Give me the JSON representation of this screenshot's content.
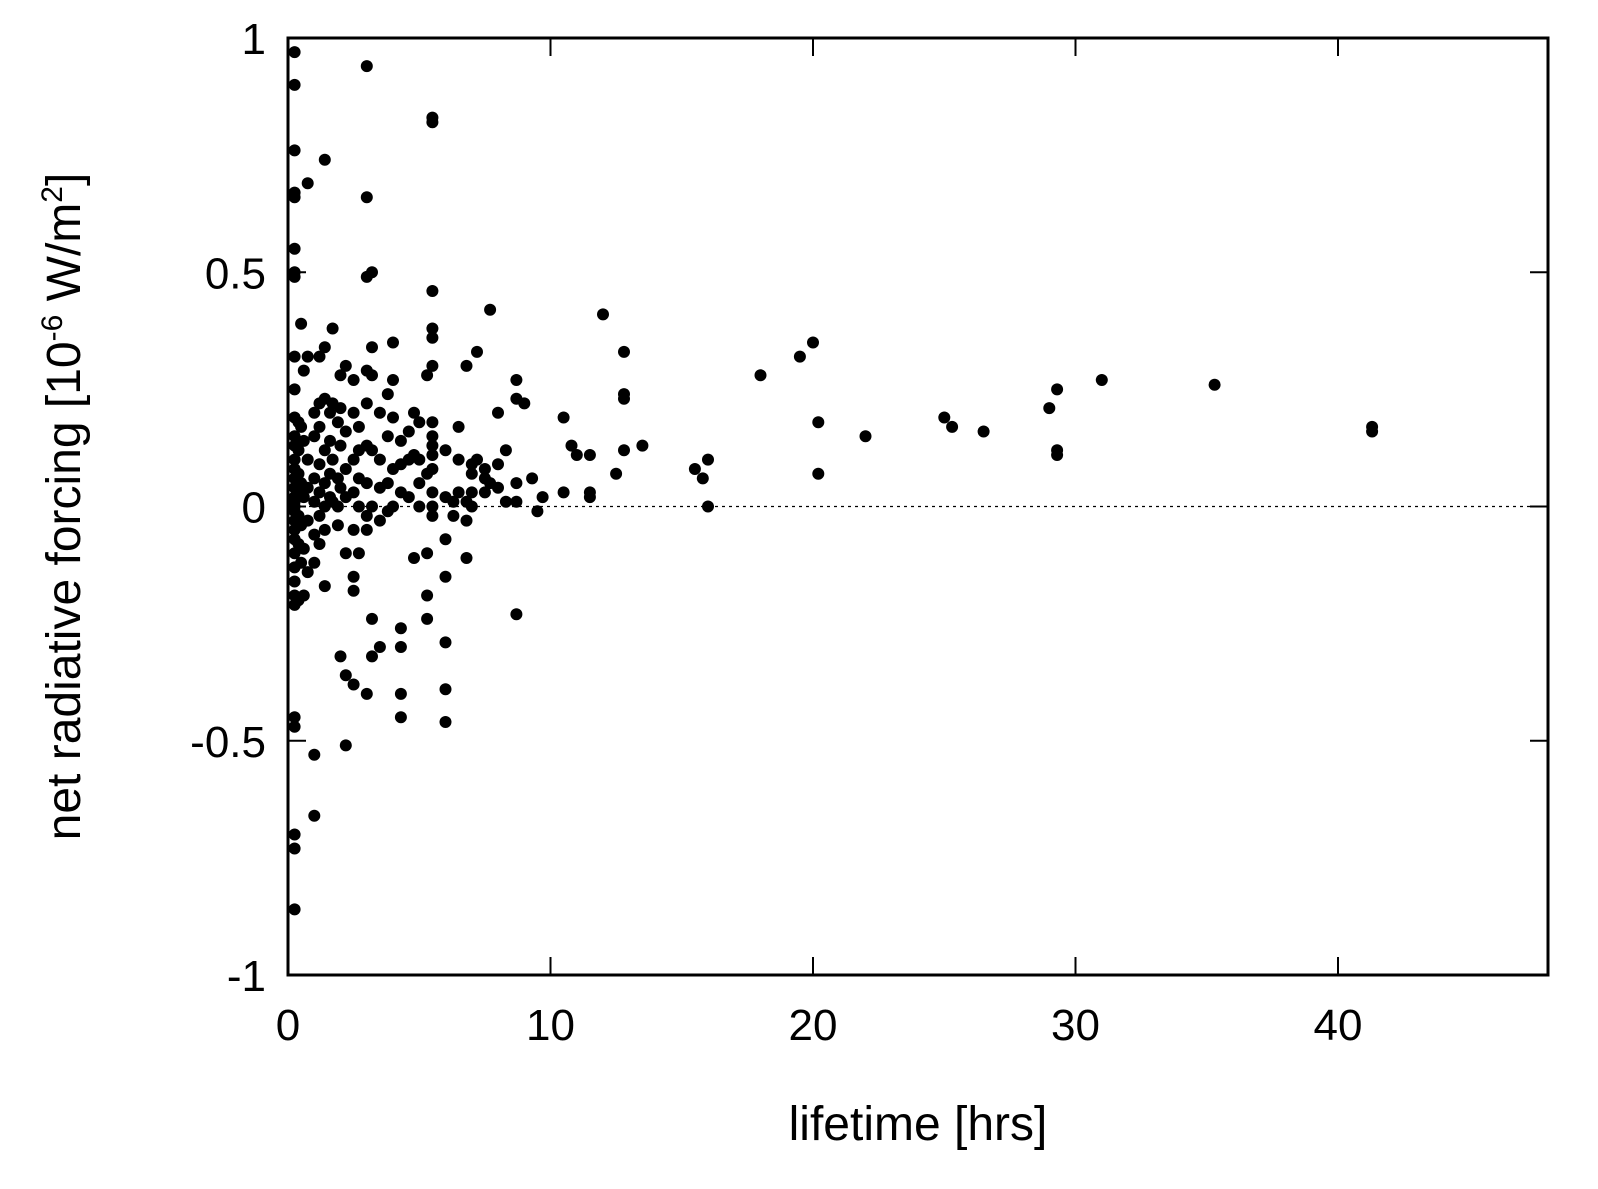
{
  "chart_data": {
    "type": "scatter",
    "title": "",
    "xlabel": "lifetime [hrs]",
    "ylabel_parts": {
      "pre": "net radiative forcing [10",
      "exp": "-6",
      "mid": " W/m",
      "exp2": "2",
      "post": "]"
    },
    "xlim": [
      0,
      48
    ],
    "ylim": [
      -1,
      1
    ],
    "x_ticks": [
      0,
      10,
      20,
      30,
      40
    ],
    "y_ticks": [
      -1,
      -0.5,
      0,
      0.5,
      1
    ],
    "x_tick_labels": [
      "0",
      "10",
      "20",
      "30",
      "40"
    ],
    "y_tick_labels": [
      "-1",
      "-0.5",
      "0",
      "0.5",
      "1"
    ],
    "zero_line": true,
    "grid": false,
    "series": [
      {
        "points": [
          [
            0.25,
            0.97
          ],
          [
            0.25,
            0.9
          ],
          [
            0.25,
            0.76
          ],
          [
            0.25,
            0.67
          ],
          [
            0.25,
            0.66
          ],
          [
            0.25,
            0.55
          ],
          [
            0.25,
            0.5
          ],
          [
            0.25,
            0.49
          ],
          [
            0.25,
            0.32
          ],
          [
            0.25,
            0.25
          ],
          [
            0.25,
            0.19
          ],
          [
            0.25,
            0.15
          ],
          [
            0.25,
            0.13
          ],
          [
            0.25,
            0.1
          ],
          [
            0.25,
            0.08
          ],
          [
            0.25,
            0.06
          ],
          [
            0.25,
            0.04
          ],
          [
            0.25,
            0.02
          ],
          [
            0.25,
            0.01
          ],
          [
            0.25,
            0.0
          ],
          [
            0.25,
            -0.01
          ],
          [
            0.25,
            -0.03
          ],
          [
            0.25,
            -0.05
          ],
          [
            0.25,
            -0.07
          ],
          [
            0.25,
            -0.1
          ],
          [
            0.25,
            -0.13
          ],
          [
            0.25,
            -0.16
          ],
          [
            0.25,
            -0.19
          ],
          [
            0.25,
            -0.21
          ],
          [
            0.25,
            -0.45
          ],
          [
            0.25,
            -0.47
          ],
          [
            0.25,
            -0.7
          ],
          [
            0.25,
            -0.73
          ],
          [
            0.25,
            -0.86
          ],
          [
            0.4,
            0.18
          ],
          [
            0.4,
            0.12
          ],
          [
            0.4,
            0.07
          ],
          [
            0.4,
            0.03
          ],
          [
            0.4,
            -0.02
          ],
          [
            0.4,
            -0.08
          ],
          [
            0.4,
            -0.2
          ],
          [
            0.5,
            0.39
          ],
          [
            0.5,
            0.17
          ],
          [
            0.5,
            0.05
          ],
          [
            0.5,
            -0.04
          ],
          [
            0.5,
            -0.12
          ],
          [
            0.6,
            0.29
          ],
          [
            0.6,
            0.14
          ],
          [
            0.6,
            0.02
          ],
          [
            0.6,
            -0.09
          ],
          [
            0.6,
            -0.19
          ],
          [
            0.75,
            0.69
          ],
          [
            0.75,
            0.32
          ],
          [
            0.75,
            0.1
          ],
          [
            0.75,
            0.04
          ],
          [
            0.75,
            -0.03
          ],
          [
            0.75,
            -0.14
          ],
          [
            1.0,
            0.2
          ],
          [
            1.0,
            0.15
          ],
          [
            1.0,
            0.06
          ],
          [
            1.0,
            0.01
          ],
          [
            1.0,
            -0.06
          ],
          [
            1.0,
            -0.12
          ],
          [
            1.0,
            -0.53
          ],
          [
            1.0,
            -0.66
          ],
          [
            1.2,
            0.32
          ],
          [
            1.2,
            0.22
          ],
          [
            1.2,
            0.17
          ],
          [
            1.2,
            0.09
          ],
          [
            1.2,
            0.03
          ],
          [
            1.2,
            -0.02
          ],
          [
            1.2,
            -0.08
          ],
          [
            1.4,
            0.74
          ],
          [
            1.4,
            0.34
          ],
          [
            1.4,
            0.23
          ],
          [
            1.4,
            0.12
          ],
          [
            1.4,
            0.05
          ],
          [
            1.4,
            0.0
          ],
          [
            1.4,
            -0.05
          ],
          [
            1.4,
            -0.17
          ],
          [
            1.6,
            0.2
          ],
          [
            1.6,
            0.14
          ],
          [
            1.6,
            0.07
          ],
          [
            1.6,
            0.02
          ],
          [
            1.7,
            0.38
          ],
          [
            1.7,
            0.22
          ],
          [
            1.7,
            0.1
          ],
          [
            1.7,
            0.01
          ],
          [
            1.9,
            0.18
          ],
          [
            1.9,
            0.06
          ],
          [
            1.9,
            0.0
          ],
          [
            1.9,
            -0.04
          ],
          [
            2.0,
            0.28
          ],
          [
            2.0,
            0.21
          ],
          [
            2.0,
            0.13
          ],
          [
            2.0,
            0.04
          ],
          [
            2.0,
            -0.32
          ],
          [
            2.2,
            0.3
          ],
          [
            2.2,
            0.16
          ],
          [
            2.2,
            0.08
          ],
          [
            2.2,
            0.02
          ],
          [
            2.2,
            -0.1
          ],
          [
            2.2,
            -0.36
          ],
          [
            2.2,
            -0.51
          ],
          [
            2.5,
            0.27
          ],
          [
            2.5,
            0.2
          ],
          [
            2.5,
            0.1
          ],
          [
            2.5,
            0.03
          ],
          [
            2.5,
            -0.05
          ],
          [
            2.5,
            -0.15
          ],
          [
            2.5,
            -0.18
          ],
          [
            2.5,
            -0.38
          ],
          [
            2.7,
            0.17
          ],
          [
            2.7,
            0.12
          ],
          [
            2.7,
            0.06
          ],
          [
            2.7,
            0.0
          ],
          [
            2.7,
            -0.1
          ],
          [
            3.0,
            0.94
          ],
          [
            3.0,
            0.66
          ],
          [
            3.0,
            0.49
          ],
          [
            3.0,
            0.29
          ],
          [
            3.0,
            0.22
          ],
          [
            3.0,
            0.13
          ],
          [
            3.0,
            0.05
          ],
          [
            3.0,
            -0.02
          ],
          [
            3.0,
            -0.05
          ],
          [
            3.0,
            -0.4
          ],
          [
            3.2,
            0.5
          ],
          [
            3.2,
            0.34
          ],
          [
            3.2,
            0.28
          ],
          [
            3.2,
            0.12
          ],
          [
            3.2,
            0.0
          ],
          [
            3.2,
            -0.24
          ],
          [
            3.2,
            -0.32
          ],
          [
            3.5,
            0.2
          ],
          [
            3.5,
            0.1
          ],
          [
            3.5,
            0.04
          ],
          [
            3.5,
            -0.03
          ],
          [
            3.5,
            -0.3
          ],
          [
            3.8,
            0.24
          ],
          [
            3.8,
            0.15
          ],
          [
            3.8,
            0.05
          ],
          [
            3.8,
            -0.01
          ],
          [
            4.0,
            0.35
          ],
          [
            4.0,
            0.27
          ],
          [
            4.0,
            0.19
          ],
          [
            4.0,
            0.08
          ],
          [
            4.0,
            0.0
          ],
          [
            4.3,
            0.14
          ],
          [
            4.3,
            0.09
          ],
          [
            4.3,
            0.03
          ],
          [
            4.3,
            -0.26
          ],
          [
            4.3,
            -0.3
          ],
          [
            4.3,
            -0.4
          ],
          [
            4.3,
            -0.45
          ],
          [
            4.6,
            0.16
          ],
          [
            4.6,
            0.1
          ],
          [
            4.6,
            0.02
          ],
          [
            4.8,
            0.2
          ],
          [
            4.8,
            0.11
          ],
          [
            4.8,
            -0.11
          ],
          [
            5.0,
            0.18
          ],
          [
            5.0,
            0.1
          ],
          [
            5.0,
            0.05
          ],
          [
            5.0,
            0.0
          ],
          [
            5.3,
            0.28
          ],
          [
            5.3,
            0.07
          ],
          [
            5.3,
            -0.1
          ],
          [
            5.3,
            -0.19
          ],
          [
            5.3,
            -0.24
          ],
          [
            5.5,
            0.83
          ],
          [
            5.5,
            0.82
          ],
          [
            5.5,
            0.46
          ],
          [
            5.5,
            0.38
          ],
          [
            5.5,
            0.36
          ],
          [
            5.5,
            0.3
          ],
          [
            5.5,
            0.18
          ],
          [
            5.5,
            0.15
          ],
          [
            5.5,
            0.13
          ],
          [
            5.5,
            0.11
          ],
          [
            5.5,
            0.08
          ],
          [
            5.5,
            0.03
          ],
          [
            5.5,
            0.0
          ],
          [
            5.5,
            -0.02
          ],
          [
            6.0,
            0.12
          ],
          [
            6.0,
            0.02
          ],
          [
            6.0,
            -0.07
          ],
          [
            6.0,
            -0.15
          ],
          [
            6.0,
            -0.29
          ],
          [
            6.0,
            -0.39
          ],
          [
            6.0,
            -0.46
          ],
          [
            6.3,
            0.01
          ],
          [
            6.3,
            -0.02
          ],
          [
            6.5,
            0.17
          ],
          [
            6.5,
            0.1
          ],
          [
            6.5,
            0.03
          ],
          [
            6.8,
            0.3
          ],
          [
            6.8,
            0.01
          ],
          [
            6.8,
            -0.03
          ],
          [
            6.8,
            -0.11
          ],
          [
            7.0,
            0.09
          ],
          [
            7.0,
            0.07
          ],
          [
            7.0,
            0.03
          ],
          [
            7.0,
            0.0
          ],
          [
            7.2,
            0.33
          ],
          [
            7.2,
            0.1
          ],
          [
            7.5,
            0.08
          ],
          [
            7.5,
            0.06
          ],
          [
            7.5,
            0.03
          ],
          [
            7.7,
            0.42
          ],
          [
            7.7,
            0.05
          ],
          [
            8.0,
            0.2
          ],
          [
            8.0,
            0.09
          ],
          [
            8.0,
            0.04
          ],
          [
            8.3,
            0.12
          ],
          [
            8.3,
            0.01
          ],
          [
            8.7,
            0.27
          ],
          [
            8.7,
            0.23
          ],
          [
            8.7,
            0.05
          ],
          [
            8.7,
            0.01
          ],
          [
            8.7,
            -0.23
          ],
          [
            9.0,
            0.22
          ],
          [
            9.3,
            0.06
          ],
          [
            9.5,
            -0.01
          ],
          [
            9.7,
            0.02
          ],
          [
            10.5,
            0.19
          ],
          [
            10.5,
            0.03
          ],
          [
            10.8,
            0.13
          ],
          [
            11.0,
            0.11
          ],
          [
            11.5,
            0.11
          ],
          [
            11.5,
            0.03
          ],
          [
            11.5,
            0.02
          ],
          [
            12.0,
            0.41
          ],
          [
            12.5,
            0.07
          ],
          [
            12.8,
            0.33
          ],
          [
            12.8,
            0.24
          ],
          [
            12.8,
            0.23
          ],
          [
            12.8,
            0.12
          ],
          [
            13.5,
            0.13
          ],
          [
            15.5,
            0.08
          ],
          [
            15.8,
            0.06
          ],
          [
            16.0,
            0.1
          ],
          [
            16.0,
            0.0
          ],
          [
            18.0,
            0.28
          ],
          [
            19.5,
            0.32
          ],
          [
            20.0,
            0.35
          ],
          [
            20.2,
            0.18
          ],
          [
            20.2,
            0.07
          ],
          [
            22.0,
            0.15
          ],
          [
            25.0,
            0.19
          ],
          [
            25.3,
            0.17
          ],
          [
            26.5,
            0.16
          ],
          [
            29.0,
            0.21
          ],
          [
            29.3,
            0.25
          ],
          [
            29.3,
            0.12
          ],
          [
            29.3,
            0.11
          ],
          [
            31.0,
            0.27
          ],
          [
            35.3,
            0.26
          ],
          [
            41.3,
            0.17
          ],
          [
            41.3,
            0.16
          ]
        ]
      }
    ]
  }
}
